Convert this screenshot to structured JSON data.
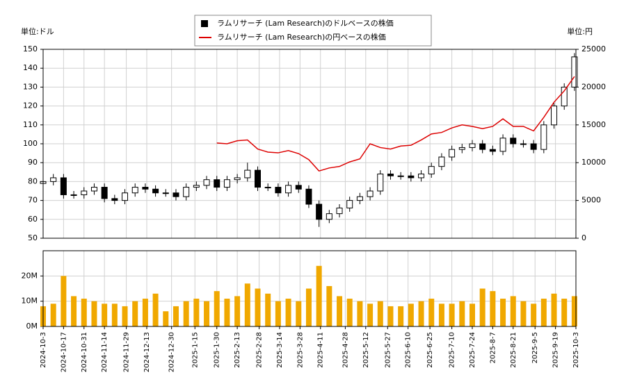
{
  "chart_data": [
    {
      "type": "candlestick",
      "y_label": "単位:ドル",
      "y2_label": "単位:円",
      "x": [
        "2024-10-03",
        "2024-10-10",
        "2024-10-17",
        "2024-10-24",
        "2024-10-31",
        "2024-11-07",
        "2024-11-14",
        "2024-11-21",
        "2024-11-28",
        "2024-12-05",
        "2024-12-12",
        "2024-12-19",
        "2024-12-26",
        "2025-01-02",
        "2025-01-09",
        "2025-01-16",
        "2025-01-23",
        "2025-01-30",
        "2025-02-06",
        "2025-02-13",
        "2025-02-20",
        "2025-02-27",
        "2025-03-06",
        "2025-03-13",
        "2025-03-20",
        "2025-03-27",
        "2025-04-03",
        "2025-04-10",
        "2025-04-17",
        "2025-04-24",
        "2025-05-01",
        "2025-05-08",
        "2025-05-15",
        "2025-05-22",
        "2025-05-29",
        "2025-06-05",
        "2025-06-12",
        "2025-06-19",
        "2025-06-26",
        "2025-07-03",
        "2025-07-10",
        "2025-07-17",
        "2025-07-24",
        "2025-07-31",
        "2025-08-07",
        "2025-08-14",
        "2025-08-21",
        "2025-08-28",
        "2025-09-04",
        "2025-09-11",
        "2025-09-18",
        "2025-09-25",
        "2025-10-02"
      ],
      "series": [
        {
          "name": "ラムリサーチ (Lam Research)のドルベースの株価",
          "color": "#000000",
          "open": [
            79,
            80,
            82,
            73,
            73,
            75,
            77,
            71,
            70,
            74,
            77,
            76,
            74,
            74,
            72,
            77,
            78,
            81,
            77,
            81,
            82,
            86,
            77,
            77,
            74,
            78,
            76,
            68,
            60,
            63,
            66,
            70,
            72,
            75,
            84,
            83,
            83,
            82,
            84,
            88,
            93,
            97,
            98,
            100,
            97,
            96,
            103,
            100,
            100,
            97,
            110,
            120,
            130
          ],
          "high": [
            81,
            84,
            84,
            75,
            77,
            79,
            79,
            73,
            76,
            79,
            79,
            78,
            76,
            76,
            79,
            80,
            83,
            83,
            83,
            84,
            90,
            88,
            79,
            79,
            80,
            80,
            78,
            70,
            65,
            68,
            72,
            74,
            77,
            86,
            86,
            85,
            85,
            86,
            90,
            95,
            99,
            100,
            102,
            102,
            99,
            105,
            105,
            102,
            102,
            112,
            122,
            132,
            148
          ],
          "low": [
            78,
            78,
            71,
            71,
            71,
            73,
            69,
            68,
            68,
            72,
            74,
            72,
            72,
            70,
            70,
            75,
            76,
            75,
            75,
            79,
            80,
            75,
            75,
            72,
            72,
            74,
            66,
            56,
            58,
            61,
            64,
            68,
            70,
            73,
            81,
            81,
            80,
            80,
            82,
            86,
            91,
            95,
            96,
            95,
            94,
            94,
            98,
            98,
            95,
            95,
            108,
            118,
            128
          ],
          "close": [
            80,
            82,
            73,
            73,
            75,
            77,
            71,
            70,
            74,
            77,
            76,
            74,
            74,
            72,
            77,
            78,
            81,
            77,
            81,
            82,
            86,
            77,
            77,
            74,
            78,
            76,
            68,
            60,
            63,
            66,
            70,
            72,
            75,
            84,
            83,
            83,
            82,
            84,
            88,
            93,
            97,
            98,
            100,
            97,
            96,
            103,
            100,
            100,
            97,
            110,
            120,
            130,
            146
          ]
        },
        {
          "name": "ラムリサーチ (Lam Research)の円ベースの株価",
          "color": "#dd0000",
          "axis": "y2",
          "values": [
            null,
            null,
            null,
            null,
            null,
            null,
            null,
            null,
            null,
            null,
            null,
            null,
            null,
            null,
            null,
            null,
            null,
            12600,
            12500,
            12900,
            13000,
            11800,
            11400,
            11300,
            11600,
            11200,
            10400,
            8900,
            9300,
            9500,
            10100,
            10500,
            12500,
            12000,
            11800,
            12200,
            12300,
            13000,
            13800,
            14000,
            14600,
            15000,
            14800,
            14500,
            14800,
            15800,
            14800,
            14800,
            14200,
            16000,
            18000,
            19500,
            21400
          ]
        }
      ],
      "ylim": [
        50,
        150
      ],
      "yticks": [
        50,
        60,
        70,
        80,
        90,
        100,
        110,
        120,
        130,
        140,
        150
      ],
      "y2lim": [
        0,
        25000
      ],
      "y2ticks": [
        0,
        5000,
        10000,
        15000,
        20000,
        25000
      ],
      "grid": true
    },
    {
      "type": "bar",
      "color": "#f0a800",
      "values": [
        8000000,
        9000000,
        20000000,
        12000000,
        11000000,
        10000000,
        9000000,
        9000000,
        8000000,
        10000000,
        11000000,
        13000000,
        6000000,
        8000000,
        10000000,
        11000000,
        10000000,
        14000000,
        11000000,
        12000000,
        17000000,
        15000000,
        13000000,
        10000000,
        11000000,
        10000000,
        15000000,
        24000000,
        16000000,
        12000000,
        11000000,
        10000000,
        9000000,
        10000000,
        8000000,
        8000000,
        9000000,
        10000000,
        11000000,
        9000000,
        9000000,
        10000000,
        9000000,
        15000000,
        14000000,
        11000000,
        12000000,
        10000000,
        9000000,
        11000000,
        13000000,
        11000000,
        12000000
      ],
      "ylim": [
        0,
        30000000
      ],
      "yticks": [
        {
          "value": 0,
          "label": "0M"
        },
        {
          "value": 10000000,
          "label": "10M"
        },
        {
          "value": 20000000,
          "label": "20M"
        }
      ],
      "xlim": [
        "2024-10-3",
        "2025-10-3"
      ],
      "xticks": [
        "2024-10-3",
        "2024-10-17",
        "2024-10-31",
        "2024-11-14",
        "2024-11-29",
        "2024-12-13",
        "2024-12-30",
        "2025-1-15",
        "2025-1-30",
        "2025-2-13",
        "2025-2-28",
        "2025-3-14",
        "2025-3-28",
        "2025-4-11",
        "2025-4-28",
        "2025-5-12",
        "2025-5-27",
        "2025-6-10",
        "2025-6-25",
        "2025-7-10",
        "2025-7-24",
        "2025-8-7",
        "2025-8-21",
        "2025-9-5",
        "2025-9-19",
        "2025-10-3"
      ],
      "grid": true
    }
  ]
}
